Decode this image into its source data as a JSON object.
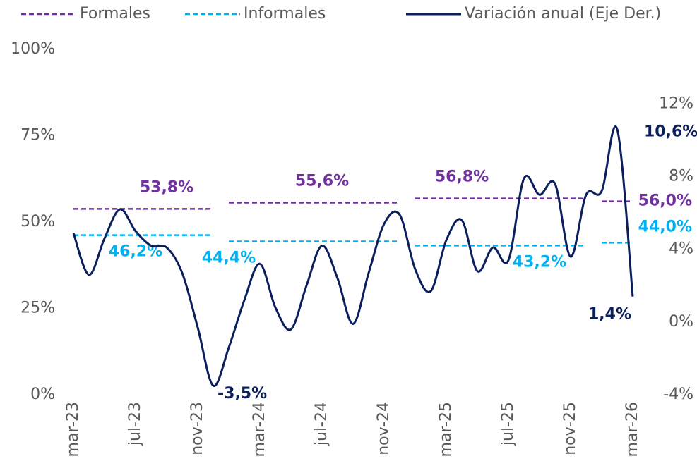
{
  "chart_data": {
    "type": "line",
    "categories": [
      "mar-23",
      null,
      null,
      null,
      "jul-23",
      null,
      null,
      null,
      "nov-23",
      null,
      null,
      null,
      "mar-24",
      null,
      null,
      null,
      "jul-24",
      null,
      null,
      null,
      "nov-24",
      null,
      null,
      null,
      "mar-25",
      null,
      null,
      null,
      "jul-25",
      null,
      null,
      null,
      "nov-25",
      null,
      null,
      null,
      "mar-26"
    ],
    "ylim": [
      0,
      100
    ],
    "yticks": [
      {
        "value": 0,
        "label": "0%"
      },
      {
        "value": 25,
        "label": "25%"
      },
      {
        "value": 50,
        "label": "50%"
      },
      {
        "value": 75,
        "label": "75%"
      },
      {
        "value": 100,
        "label": "100%"
      }
    ],
    "y2lim": [
      -4,
      15
    ],
    "y2ticks": [
      {
        "value": -4,
        "label": "-4%"
      },
      {
        "value": 0,
        "label": "0%"
      },
      {
        "value": 4,
        "label": "4%"
      },
      {
        "value": 8,
        "label": "8%"
      },
      {
        "value": 12,
        "label": "12%"
      }
    ],
    "grid": false,
    "legend": "top",
    "series": [
      {
        "name": "Formales",
        "color": "#7030a0",
        "style": "dashed",
        "values": [
          53.8,
          53.8,
          53.8,
          53.8,
          53.8,
          53.8,
          53.8,
          53.8,
          53.8,
          53.8,
          55.6,
          55.6,
          55.6,
          55.6,
          55.6,
          55.6,
          55.6,
          55.6,
          55.6,
          55.6,
          55.6,
          55.6,
          56.8,
          56.8,
          56.8,
          56.8,
          56.8,
          56.8,
          56.8,
          56.8,
          56.8,
          56.8,
          56.8,
          56.8,
          56.0,
          56.0,
          56.0
        ],
        "value_labels": [
          null,
          null,
          null,
          null,
          null,
          null,
          "53,8%",
          null,
          null,
          null,
          null,
          null,
          null,
          null,
          null,
          null,
          "55,6%",
          null,
          null,
          null,
          null,
          null,
          null,
          null,
          null,
          "56,8%",
          null,
          null,
          null,
          null,
          null,
          null,
          null,
          null,
          null,
          null,
          "56,0%"
        ]
      },
      {
        "name": "Informales",
        "color": "#00b0f0",
        "style": "dashed",
        "values": [
          46.2,
          46.2,
          46.2,
          46.2,
          46.2,
          46.2,
          46.2,
          46.2,
          46.2,
          46.2,
          44.4,
          44.4,
          44.4,
          44.4,
          44.4,
          44.4,
          44.4,
          44.4,
          44.4,
          44.4,
          44.4,
          44.4,
          43.2,
          43.2,
          43.2,
          43.2,
          43.2,
          43.2,
          43.2,
          43.2,
          43.2,
          43.2,
          43.2,
          43.2,
          44.0,
          44.0,
          44.0
        ],
        "value_labels": [
          null,
          null,
          null,
          null,
          "46,2%",
          null,
          null,
          null,
          null,
          null,
          "44,4%",
          null,
          null,
          null,
          null,
          null,
          null,
          null,
          null,
          null,
          null,
          null,
          null,
          null,
          null,
          null,
          null,
          null,
          null,
          null,
          "43,2%",
          null,
          null,
          null,
          null,
          null,
          "44,0%"
        ]
      },
      {
        "name": "Variación anual (Eje Der.)",
        "color": "#0b1f5c",
        "style": "solid",
        "axis": "y2",
        "values": [
          4.9,
          2.6,
          4.6,
          6.2,
          5.0,
          4.2,
          4.1,
          2.7,
          -0.3,
          -3.5,
          -1.4,
          1.2,
          3.2,
          0.8,
          -0.4,
          2.0,
          4.2,
          2.4,
          -0.1,
          2.7,
          5.4,
          5.9,
          2.9,
          1.7,
          4.5,
          5.6,
          2.8,
          4.1,
          3.4,
          7.9,
          7.0,
          7.6,
          3.6,
          7.0,
          7.2,
          10.6,
          1.4
        ],
        "value_labels": [
          null,
          null,
          null,
          null,
          null,
          null,
          null,
          null,
          null,
          "-3,5%",
          null,
          null,
          null,
          null,
          null,
          null,
          null,
          null,
          null,
          null,
          null,
          null,
          null,
          null,
          null,
          null,
          null,
          null,
          null,
          null,
          null,
          null,
          null,
          null,
          null,
          "10,6%",
          "1,4%"
        ]
      }
    ]
  }
}
